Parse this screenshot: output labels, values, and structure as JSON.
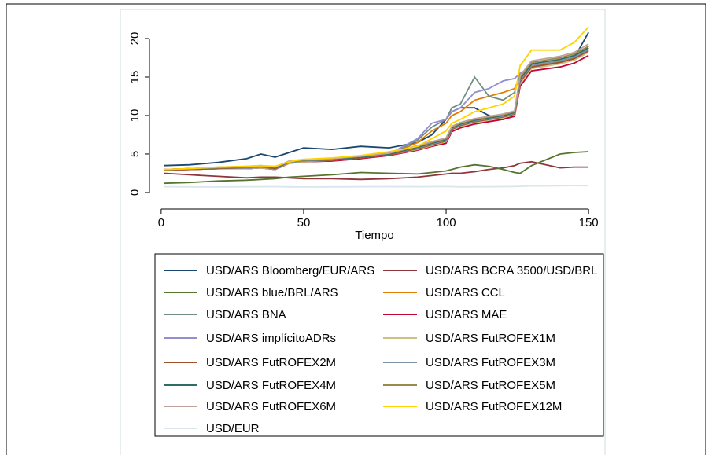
{
  "chart_data": {
    "type": "line",
    "x_label": "Tiempo",
    "x": [
      1,
      10,
      20,
      30,
      35,
      40,
      45,
      50,
      60,
      70,
      80,
      90,
      95,
      100,
      102,
      105,
      110,
      115,
      120,
      124,
      126,
      130,
      140,
      145,
      150
    ],
    "xlim": [
      -3,
      153
    ],
    "xticks": [
      0,
      50,
      100,
      150
    ],
    "ylim": [
      -1.8,
      23
    ],
    "yticks": [
      0,
      5,
      10,
      15,
      20
    ],
    "series": [
      {
        "name": "USD/ARS Bloomberg/EUR/ARS",
        "color": "#1a476f",
        "values": [
          3.5,
          3.6,
          3.9,
          4.4,
          5.0,
          4.6,
          5.2,
          5.8,
          5.6,
          6.0,
          5.8,
          6.5,
          7.5,
          9.5,
          10.5,
          11.0,
          11.0,
          10.0,
          9.5,
          10.0,
          15.0,
          16.5,
          17.0,
          17.5,
          20.8
        ]
      },
      {
        "name": "USD/ARS BCRA 3500/USD/BRL",
        "color": "#90353b",
        "values": [
          2.5,
          2.3,
          2.1,
          1.9,
          2.0,
          2.0,
          1.9,
          1.8,
          1.8,
          1.7,
          1.8,
          2.0,
          2.2,
          2.4,
          2.5,
          2.5,
          2.7,
          3.0,
          3.2,
          3.5,
          3.8,
          4.0,
          3.2,
          3.3,
          3.3
        ]
      },
      {
        "name": "USD/ARS blue/BRL/ARS",
        "color": "#55752f",
        "values": [
          1.2,
          1.3,
          1.5,
          1.6,
          1.7,
          1.8,
          2.0,
          2.1,
          2.3,
          2.6,
          2.5,
          2.4,
          2.6,
          2.8,
          3.0,
          3.3,
          3.6,
          3.4,
          3.0,
          2.6,
          2.5,
          3.5,
          5.0,
          5.2,
          5.3
        ]
      },
      {
        "name": "USD/ARS CCL",
        "color": "#e37e00",
        "values": [
          2.9,
          3.0,
          3.1,
          3.1,
          3.2,
          3.0,
          3.9,
          4.1,
          4.2,
          4.5,
          4.9,
          6.5,
          8.0,
          9.0,
          10.0,
          10.5,
          12.0,
          12.5,
          13.0,
          13.5,
          15.0,
          16.5,
          17.0,
          17.5,
          18.5
        ]
      },
      {
        "name": "USD/ARS BNA",
        "color": "#6e8e84",
        "values": [
          2.9,
          3.0,
          3.1,
          3.1,
          3.2,
          3.0,
          3.8,
          4.0,
          4.1,
          4.4,
          4.9,
          6.8,
          8.5,
          9.5,
          11.0,
          11.5,
          15.0,
          12.5,
          12.0,
          13.0,
          15.5,
          16.2,
          16.8,
          17.3,
          18.8
        ]
      },
      {
        "name": "USD/ARS MAE",
        "color": "#c10534",
        "values": [
          2.9,
          3.0,
          3.1,
          3.1,
          3.2,
          3.0,
          3.8,
          4.0,
          4.1,
          4.4,
          4.8,
          5.5,
          6.0,
          6.4,
          7.9,
          8.4,
          8.9,
          9.2,
          9.5,
          9.9,
          13.8,
          15.8,
          16.3,
          16.8,
          17.8
        ]
      },
      {
        "name": "USD/ARS implícitoADRs",
        "color": "#938dd2",
        "values": [
          2.9,
          3.0,
          3.1,
          3.1,
          3.2,
          3.0,
          3.9,
          4.1,
          4.2,
          4.5,
          5.0,
          7.0,
          9.0,
          9.5,
          10.5,
          11.0,
          13.0,
          13.5,
          14.5,
          14.8,
          15.5,
          16.3,
          16.8,
          17.2,
          19.0
        ]
      },
      {
        "name": "USD/ARS FutROFEX1M",
        "color": "#cac27e",
        "values": [
          2.9,
          3.0,
          3.1,
          3.2,
          3.2,
          3.1,
          3.8,
          4.0,
          4.2,
          4.5,
          4.9,
          5.6,
          6.1,
          6.6,
          8.1,
          8.6,
          9.1,
          9.4,
          9.7,
          10.1,
          14.2,
          16.1,
          16.7,
          17.2,
          18.2
        ]
      },
      {
        "name": "USD/ARS FutROFEX2M",
        "color": "#a0522d",
        "values": [
          2.9,
          3.0,
          3.1,
          3.2,
          3.3,
          3.1,
          3.9,
          4.1,
          4.2,
          4.5,
          4.9,
          5.7,
          6.2,
          6.7,
          8.2,
          8.7,
          9.2,
          9.5,
          9.8,
          10.2,
          14.4,
          16.3,
          16.9,
          17.4,
          18.4
        ]
      },
      {
        "name": "USD/ARS FutROFEX3M",
        "color": "#7b92a8",
        "values": [
          3.0,
          3.1,
          3.2,
          3.2,
          3.3,
          3.2,
          3.9,
          4.1,
          4.3,
          4.6,
          5.0,
          5.8,
          6.3,
          6.8,
          8.3,
          8.8,
          9.3,
          9.6,
          9.9,
          10.3,
          14.6,
          16.5,
          17.1,
          17.6,
          18.6
        ]
      },
      {
        "name": "USD/ARS FutROFEX4M",
        "color": "#2d6d66",
        "values": [
          3.0,
          3.1,
          3.2,
          3.3,
          3.4,
          3.2,
          4.0,
          4.2,
          4.3,
          4.6,
          5.0,
          5.9,
          6.4,
          6.9,
          8.4,
          8.9,
          9.4,
          9.7,
          10.0,
          10.4,
          14.8,
          16.7,
          17.3,
          17.8,
          18.8
        ]
      },
      {
        "name": "USD/ARS FutROFEX5M",
        "color": "#9c8847",
        "values": [
          3.0,
          3.1,
          3.2,
          3.3,
          3.4,
          3.3,
          4.0,
          4.2,
          4.4,
          4.7,
          5.1,
          6.0,
          6.5,
          7.0,
          8.5,
          9.0,
          9.5,
          9.8,
          10.1,
          10.5,
          15.0,
          16.9,
          17.5,
          18.0,
          19.0
        ]
      },
      {
        "name": "USD/ARS FutROFEX6M",
        "color": "#bfa19c",
        "values": [
          3.0,
          3.1,
          3.3,
          3.4,
          3.5,
          3.3,
          4.1,
          4.3,
          4.4,
          4.7,
          5.1,
          6.1,
          6.6,
          7.1,
          8.6,
          9.1,
          9.6,
          9.9,
          10.2,
          10.6,
          15.2,
          17.1,
          17.7,
          18.2,
          19.3
        ]
      },
      {
        "name": "USD/ARS FutROFEX12M",
        "color": "#ffd200",
        "values": [
          3.0,
          3.1,
          3.3,
          3.4,
          3.5,
          3.4,
          4.0,
          4.3,
          4.5,
          4.8,
          5.3,
          6.0,
          7.0,
          8.0,
          9.0,
          9.5,
          10.5,
          11.0,
          11.5,
          12.5,
          16.5,
          18.5,
          18.5,
          19.5,
          21.5
        ]
      },
      {
        "name": "USD/EUR",
        "color": "#d9e6eb",
        "values": [
          0.75,
          0.73,
          0.72,
          0.74,
          0.75,
          0.76,
          0.73,
          0.72,
          0.73,
          0.75,
          0.76,
          0.75,
          0.76,
          0.77,
          0.76,
          0.73,
          0.74,
          0.75,
          0.76,
          0.78,
          0.8,
          0.85,
          0.88,
          0.9,
          0.88
        ]
      }
    ]
  }
}
